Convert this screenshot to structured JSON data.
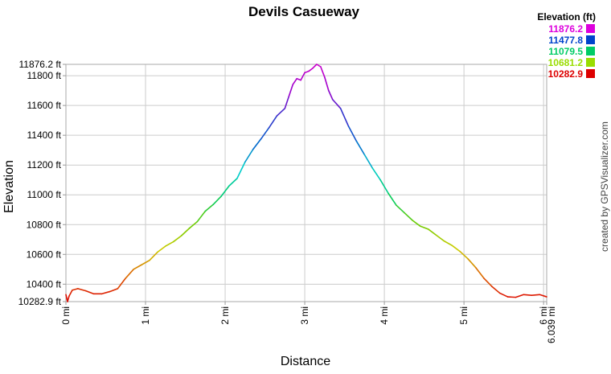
{
  "chart_data": {
    "type": "line",
    "title": "Devils Casueway",
    "xlabel": "Distance",
    "ylabel": "Elevation",
    "xlim": [
      0,
      6.039
    ],
    "ylim": [
      10282.9,
      11876.2
    ],
    "grid": true,
    "y_ticks": [
      {
        "value": 11876.2,
        "label": "11876.2 ft"
      },
      {
        "value": 11800,
        "label": "11800 ft"
      },
      {
        "value": 11600,
        "label": "11600 ft"
      },
      {
        "value": 11400,
        "label": "11400 ft"
      },
      {
        "value": 11200,
        "label": "11200 ft"
      },
      {
        "value": 11000,
        "label": "11000 ft"
      },
      {
        "value": 10800,
        "label": "10800 ft"
      },
      {
        "value": 10600,
        "label": "10600 ft"
      },
      {
        "value": 10400,
        "label": "10400 ft"
      },
      {
        "value": 10282.9,
        "label": "10282.9 ft"
      }
    ],
    "x_ticks": [
      {
        "value": 0,
        "label": "0 mi"
      },
      {
        "value": 1,
        "label": "1 mi"
      },
      {
        "value": 2,
        "label": "2 mi"
      },
      {
        "value": 3,
        "label": "3 mi"
      },
      {
        "value": 4,
        "label": "4 mi"
      },
      {
        "value": 5,
        "label": "5 mi"
      },
      {
        "value": 6,
        "label": "6 mi"
      },
      {
        "value": 6.039,
        "label": "6.039 mi"
      }
    ],
    "legend": {
      "title": "Elevation (ft)",
      "placement": "top-right",
      "entries": [
        {
          "label": "11876.2",
          "color": "#dd00dd"
        },
        {
          "label": "11477.8",
          "color": "#0044cc"
        },
        {
          "label": "11079.5",
          "color": "#00cc66"
        },
        {
          "label": "10681.2",
          "color": "#99dd00"
        },
        {
          "label": "10282.9",
          "color": "#dd0000"
        }
      ]
    },
    "color_scale": {
      "min": 10282.9,
      "max": 11876.2,
      "stops": [
        "#dd0000",
        "#dd6600",
        "#cccc00",
        "#66cc00",
        "#00cc66",
        "#00cccc",
        "#0066cc",
        "#3333cc",
        "#9900cc",
        "#cc00cc"
      ]
    },
    "series": [
      {
        "x": [
          0,
          0.02,
          0.04,
          0.08,
          0.15,
          0.25,
          0.35,
          0.45,
          0.55,
          0.65,
          0.75,
          0.85,
          0.95,
          1.05,
          1.15,
          1.25,
          1.35,
          1.45,
          1.55,
          1.65,
          1.75,
          1.85,
          1.95,
          2.05,
          2.15,
          2.25,
          2.35,
          2.45,
          2.55,
          2.65,
          2.75,
          2.8,
          2.85,
          2.9,
          2.95,
          3.0,
          3.05,
          3.1,
          3.15,
          3.2,
          3.25,
          3.3,
          3.35,
          3.45,
          3.55,
          3.65,
          3.75,
          3.85,
          3.95,
          4.05,
          4.15,
          4.25,
          4.35,
          4.45,
          4.55,
          4.65,
          4.75,
          4.85,
          4.95,
          5.05,
          5.15,
          5.25,
          5.35,
          5.45,
          5.55,
          5.65,
          5.75,
          5.85,
          5.95,
          6.039
        ],
        "y": [
          10330,
          10282.9,
          10320,
          10360,
          10370,
          10355,
          10335,
          10335,
          10350,
          10370,
          10440,
          10500,
          10530,
          10560,
          10615,
          10655,
          10685,
          10725,
          10775,
          10820,
          10890,
          10935,
          10990,
          11060,
          11110,
          11220,
          11305,
          11375,
          11450,
          11530,
          11580,
          11660,
          11740,
          11780,
          11770,
          11820,
          11830,
          11850,
          11876.2,
          11860,
          11790,
          11700,
          11640,
          11580,
          11460,
          11360,
          11270,
          11180,
          11100,
          11010,
          10930,
          10880,
          10830,
          10790,
          10770,
          10730,
          10690,
          10660,
          10620,
          10570,
          10510,
          10440,
          10385,
          10340,
          10315,
          10312,
          10330,
          10325,
          10330,
          10315
        ]
      }
    ]
  },
  "credit": "created by GPSVisualizer.com"
}
